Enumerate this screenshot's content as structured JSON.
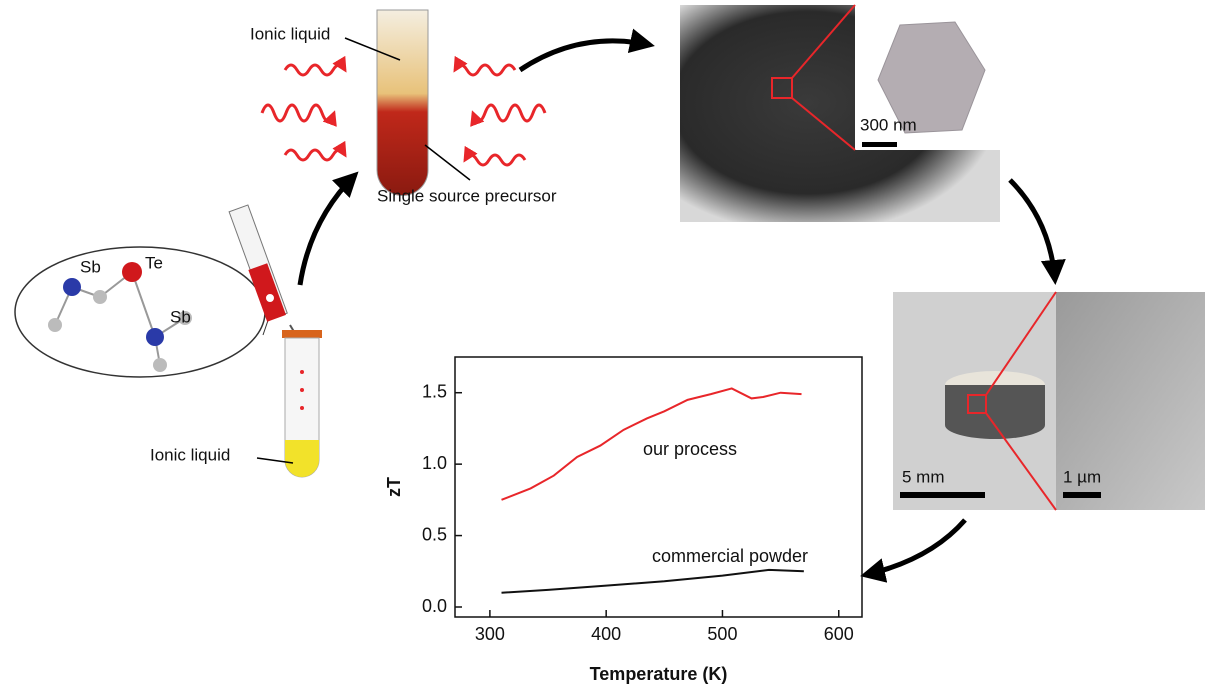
{
  "labels": {
    "ionic_liquid_top": "Ionic liquid",
    "precursor": "Single source precursor",
    "sb_1": "Sb",
    "te": "Te",
    "sb_2": "Sb",
    "ionic_liquid_bottom": "Ionic liquid",
    "scale_300nm": "300 nm",
    "scale_5mm": "5 mm",
    "scale_1um": "1 µm"
  },
  "chart_data": {
    "type": "line",
    "xlabel": "Temperature (K)",
    "ylabel": "zT",
    "xlim": [
      270,
      620
    ],
    "ylim": [
      -0.07,
      1.75
    ],
    "xticks": [
      300,
      400,
      500,
      600
    ],
    "yticks": [
      {
        "value": 0,
        "label": "0.0"
      },
      0.5,
      {
        "value": 1,
        "label": "1.0"
      },
      1.5
    ],
    "series": [
      {
        "name": "our process",
        "color": "#e8262a",
        "x": [
          310,
          335,
          355,
          375,
          395,
          415,
          435,
          450,
          470,
          490,
          508,
          525,
          535,
          550,
          568
        ],
        "values": [
          0.75,
          0.83,
          0.92,
          1.05,
          1.13,
          1.24,
          1.32,
          1.37,
          1.45,
          1.49,
          1.53,
          1.46,
          1.47,
          1.5,
          1.49
        ]
      },
      {
        "name": "commercial powder",
        "color": "#111111",
        "x": [
          310,
          350,
          400,
          450,
          500,
          540,
          570
        ],
        "values": [
          0.1,
          0.12,
          0.15,
          0.18,
          0.22,
          0.26,
          0.25
        ]
      }
    ]
  }
}
